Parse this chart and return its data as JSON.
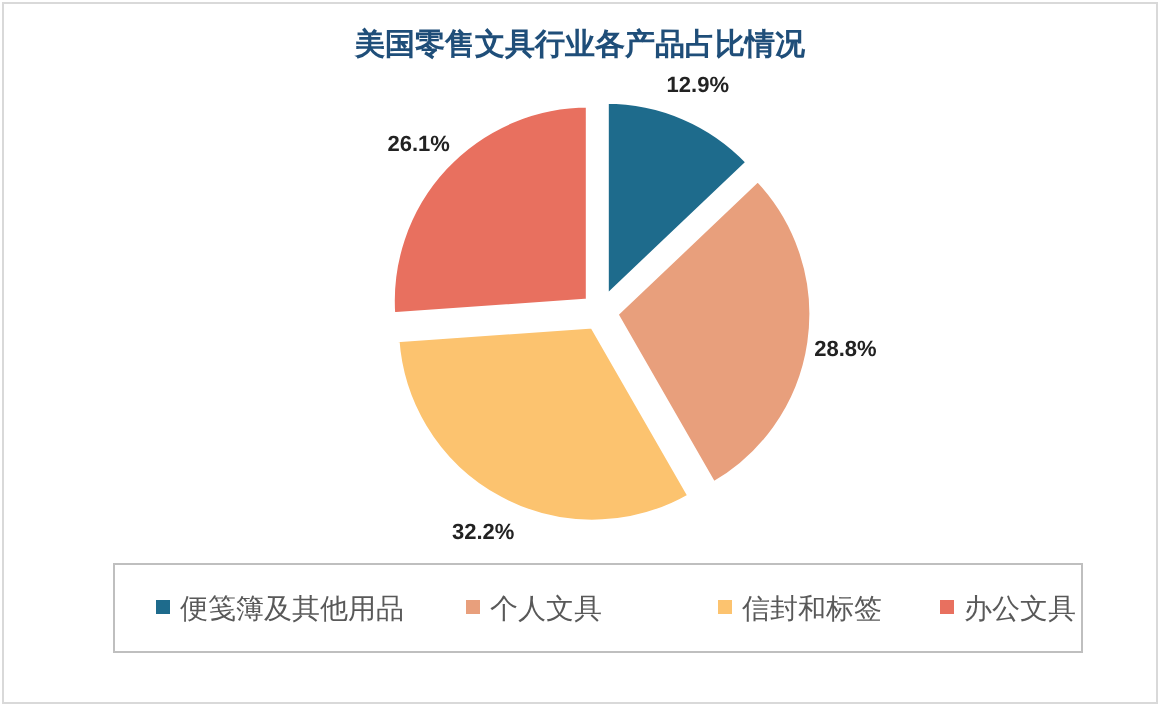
{
  "chart_data": {
    "type": "pie",
    "title": "美国零售文具行业各产品占比情况",
    "categories": [
      "便笺簿及其他用品",
      "个人文具",
      "信封和标签",
      "办公文具"
    ],
    "values": [
      12.9,
      28.8,
      32.2,
      26.1
    ],
    "value_labels": [
      "12.9%",
      "28.8%",
      "32.2%",
      "26.1%"
    ],
    "colors": [
      "#1e6b8c",
      "#e89f7c",
      "#fcc36f",
      "#e8705f"
    ],
    "legend": "bottom"
  }
}
